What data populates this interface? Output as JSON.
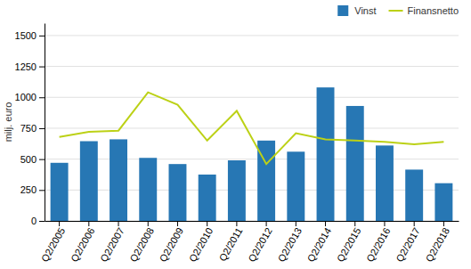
{
  "chart_data": {
    "type": "bar",
    "categories": [
      "Q2/2005",
      "Q2/2006",
      "Q2/2007",
      "Q2/2008",
      "Q2/2009",
      "Q2/2010",
      "Q2/2011",
      "Q2/2012",
      "Q2/2013",
      "Q2/2014",
      "Q2/2015",
      "Q2/2016",
      "Q2/2017",
      "Q2/2018"
    ],
    "series": [
      {
        "name": "Vinst",
        "type": "bar",
        "color": "#2777b4",
        "values": [
          470,
          645,
          660,
          510,
          460,
          375,
          490,
          650,
          560,
          1080,
          930,
          610,
          415,
          305
        ]
      },
      {
        "name": "Finansnetto",
        "type": "line",
        "color": "#bcd116",
        "values": [
          680,
          720,
          730,
          1040,
          940,
          650,
          890,
          460,
          710,
          660,
          650,
          640,
          620,
          640
        ]
      }
    ],
    "ylabel": "milj. euro",
    "ylim": [
      0,
      1600
    ],
    "yticks": [
      0,
      250,
      500,
      750,
      1000,
      1250,
      1500
    ],
    "grid": true,
    "legend": "upper right"
  }
}
